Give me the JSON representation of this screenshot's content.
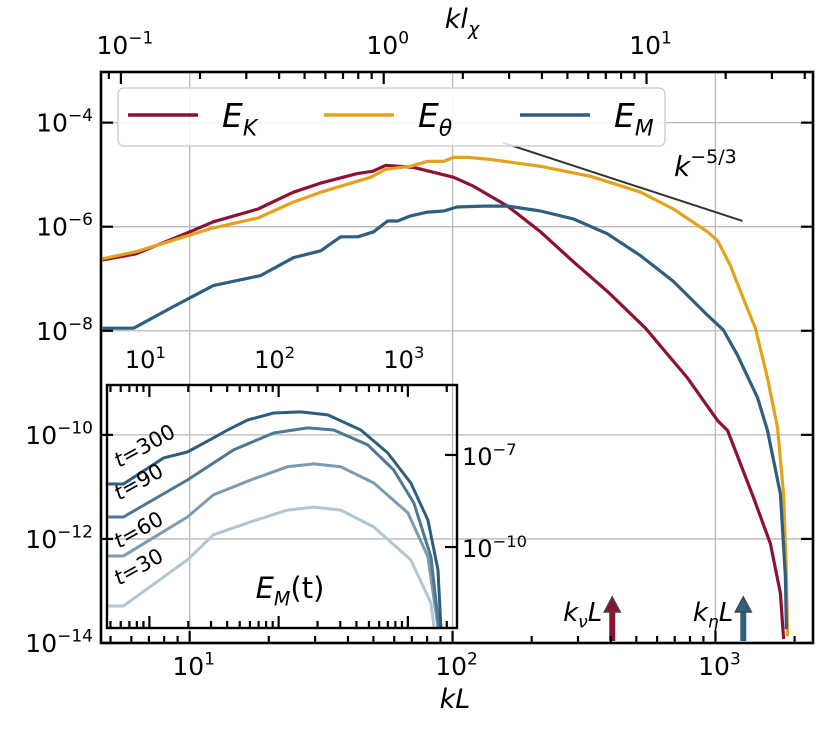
{
  "chart_data": [
    {
      "type": "line",
      "xlabel": "kL",
      "top_xlabel": {
        "base": "kl",
        "sub": "χ"
      },
      "xscale": "log",
      "yscale": "log",
      "xlim": [
        4.6,
        2350
      ],
      "ylim": [
        1e-14,
        0.00094
      ],
      "top_xlim": [
        0.084,
        43
      ],
      "grid": true,
      "legend": "top-left",
      "x_ticks": [
        {
          "base": "10",
          "exp": "1",
          "v": 10
        },
        {
          "base": "10",
          "exp": "2",
          "v": 100
        },
        {
          "base": "10",
          "exp": "3",
          "v": 1000
        }
      ],
      "top_ticks": [
        {
          "base": "10",
          "exp": "−1",
          "v": 0.1
        },
        {
          "base": "10",
          "exp": "0",
          "v": 1
        },
        {
          "base": "10",
          "exp": "1",
          "v": 10
        }
      ],
      "y_ticks": [
        {
          "base": "10",
          "exp": "−4",
          "v": 0.0001
        },
        {
          "base": "10",
          "exp": "−6",
          "v": 1e-06
        },
        {
          "base": "10",
          "exp": "−8",
          "v": 1e-08
        },
        {
          "base": "10",
          "exp": "−10",
          "v": 1e-10
        },
        {
          "base": "10",
          "exp": "−12",
          "v": 1e-12
        },
        {
          "base": "10",
          "exp": "−14",
          "v": 1e-14
        }
      ],
      "series": [
        {
          "name": {
            "base": "E",
            "sub": "K"
          },
          "color": "#8c1232",
          "x": [
            4.67,
            6.24,
            9.8,
            12.3,
            18.2,
            24.8,
            31.5,
            43.6,
            49.7,
            55.6,
            71.1,
            84.7,
            101,
            120,
            162,
            216,
            288,
            388,
            542,
            783,
            1019,
            1112,
            1393,
            1618,
            1766,
            1816
          ],
          "y": [
            2.3e-07,
            3e-07,
            7.6e-07,
            1.24e-06,
            2.19e-06,
            4.6e-06,
            6.9e-06,
            1.06e-05,
            1.16e-05,
            1.51e-05,
            1.38e-05,
            1.11e-05,
            8.9e-06,
            6e-06,
            2.49e-06,
            8e-07,
            2.13e-07,
            5.7e-08,
            1.12e-08,
            1.24e-09,
            1.88e-10,
            1.21e-10,
            6.4e-12,
            8.1e-13,
            9e-14,
            1.19e-14
          ]
        },
        {
          "name": {
            "base": "E",
            "sub": "θ"
          },
          "color": "#e3a21a",
          "x": [
            4.67,
            6.24,
            9.8,
            12.3,
            18.2,
            24.8,
            31.5,
            48.8,
            55.6,
            69.2,
            80.4,
            92.5,
            101,
            114,
            139,
            216,
            335,
            519,
            692,
            933,
            1019,
            1140,
            1276,
            1419,
            1578,
            1722,
            1816,
            1862,
            1879
          ],
          "y": [
            2.43e-07,
            3.3e-07,
            6.7e-07,
            9.5e-07,
            1.47e-06,
            2.97e-06,
            4.6e-06,
            8.9e-06,
            1.27e-05,
            1.45e-05,
            1.8e-05,
            1.8e-05,
            2.15e-05,
            2.15e-05,
            1.97e-05,
            1.45e-05,
            9.3e-06,
            4.6e-06,
            2.19e-06,
            8e-07,
            5.4e-07,
            1.79e-07,
            4.2e-08,
            1.12e-08,
            1.24e-09,
            1.38e-10,
            7.3e-12,
            2.17e-13,
            1.36e-14
          ]
        },
        {
          "name": {
            "base": "E",
            "sub": "M"
          },
          "color": "#2f5e80",
          "x": [
            4.67,
            6.12,
            8.7,
            12.3,
            18.6,
            24.8,
            31.5,
            37.5,
            43.6,
            50.1,
            56.6,
            61.8,
            69.2,
            80.4,
            92.5,
            104,
            131,
            162,
            216,
            288,
            388,
            519,
            692,
            933,
            1072,
            1213,
            1445,
            1578,
            1766,
            1845,
            1862
          ],
          "y": [
            1.12e-08,
            1.12e-08,
            2.94e-08,
            7.4e-08,
            1.15e-07,
            2.54e-07,
            3.45e-07,
            6.4e-07,
            6.4e-07,
            8e-07,
            1.29e-06,
            1.29e-06,
            1.61e-06,
            1.91e-06,
            2e-06,
            2.39e-06,
            2.49e-06,
            2.49e-06,
            2e-06,
            1.41e-06,
            7.3e-07,
            2.77e-07,
            8.9e-08,
            1.99e-08,
            1.03e-08,
            3.4e-09,
            5.2e-10,
            1.21e-10,
            7.3e-12,
            1.9e-13,
            1.85e-14
          ]
        }
      ],
      "annotations": {
        "power_law": {
          "base": "k",
          "exp": "−5/3",
          "x": [
            155,
            1267
          ],
          "y": [
            4.15e-05,
            1.29e-06
          ],
          "color": "#333333"
        },
        "arrows": [
          {
            "base": "k",
            "sub": "ν",
            "tail": "L",
            "x": 405,
            "color": "#8c1232"
          },
          {
            "base": "k",
            "sub": "η",
            "tail": "L",
            "x": 1276,
            "color": "#2f5e80"
          }
        ]
      }
    },
    {
      "type": "line",
      "title": {
        "base": "E",
        "sub": "M",
        "tail": "(t)"
      },
      "xscale": "log",
      "yscale": "log",
      "xlim": [
        4.7,
        2400
      ],
      "ylim": [
        2.3e-13,
        1.9e-05
      ],
      "x_ticks": [
        {
          "base": "10",
          "exp": "1",
          "v": 10
        },
        {
          "base": "10",
          "exp": "2",
          "v": 100
        },
        {
          "base": "10",
          "exp": "3",
          "v": 1000
        }
      ],
      "y_ticks": [
        {
          "base": "10",
          "exp": "−7",
          "v": 1e-07
        },
        {
          "base": "10",
          "exp": "−10",
          "v": 1e-10
        }
      ],
      "series": [
        {
          "name": "t = 300",
          "color": "#2e5d7e",
          "x": [
            4.8,
            6.3,
            12.9,
            19.7,
            31.3,
            40.3,
            57.5,
            91.4,
            148,
            240,
            432,
            700,
            1054,
            1429,
            1710,
            1803
          ],
          "y": [
            1.13e-08,
            1.13e-08,
            8e-08,
            1.25e-07,
            3.6e-07,
            6.5e-07,
            1.38e-06,
            2.33e-06,
            2.52e-06,
            2.01e-06,
            6.5e-07,
            1.16e-07,
            1.22e-08,
            7.6e-10,
            1.8e-11,
            2.5e-13
          ]
        },
        {
          "name": "t = 90",
          "color": "#4d7793",
          "x": [
            4.8,
            6.3,
            19.7,
            44.8,
            91.4,
            168,
            267,
            490,
            778,
            1114,
            1507,
            1738
          ],
          "y": [
            9.5e-10,
            9.5e-10,
            1.53e-08,
            1.46e-07,
            5.2e-07,
            7.6e-07,
            6.5e-07,
            2.12e-07,
            3.2e-08,
            2.7e-09,
            4.8e-11,
            2.5e-13
          ]
        },
        {
          "name": "t = 60",
          "color": "#7b9bb0",
          "x": [
            4.8,
            6.3,
            19.7,
            31.3,
            60.7,
            117,
            187,
            303,
            545,
            1000,
            1429,
            1710
          ],
          "y": [
            5.1e-11,
            5.1e-11,
            9.5e-10,
            5e-09,
            1.53e-08,
            4.1e-08,
            5.1e-08,
            4.1e-08,
            1.22e-08,
            1.29e-09,
            4.8e-11,
            2.5e-13
          ]
        },
        {
          "name": "t = 30",
          "color": "#b3c6d2",
          "x": [
            4.8,
            6.3,
            19.7,
            31.3,
            60.7,
            117,
            187,
            303,
            545,
            1054,
            1507,
            1592
          ],
          "y": [
            1.2e-12,
            1.2e-12,
            3.8e-11,
            2.5e-10,
            6.6e-10,
            1.6e-09,
            2e-09,
            1.6e-09,
            4.5e-10,
            3.8e-11,
            1.5e-12,
            2.5e-13
          ]
        }
      ]
    }
  ]
}
